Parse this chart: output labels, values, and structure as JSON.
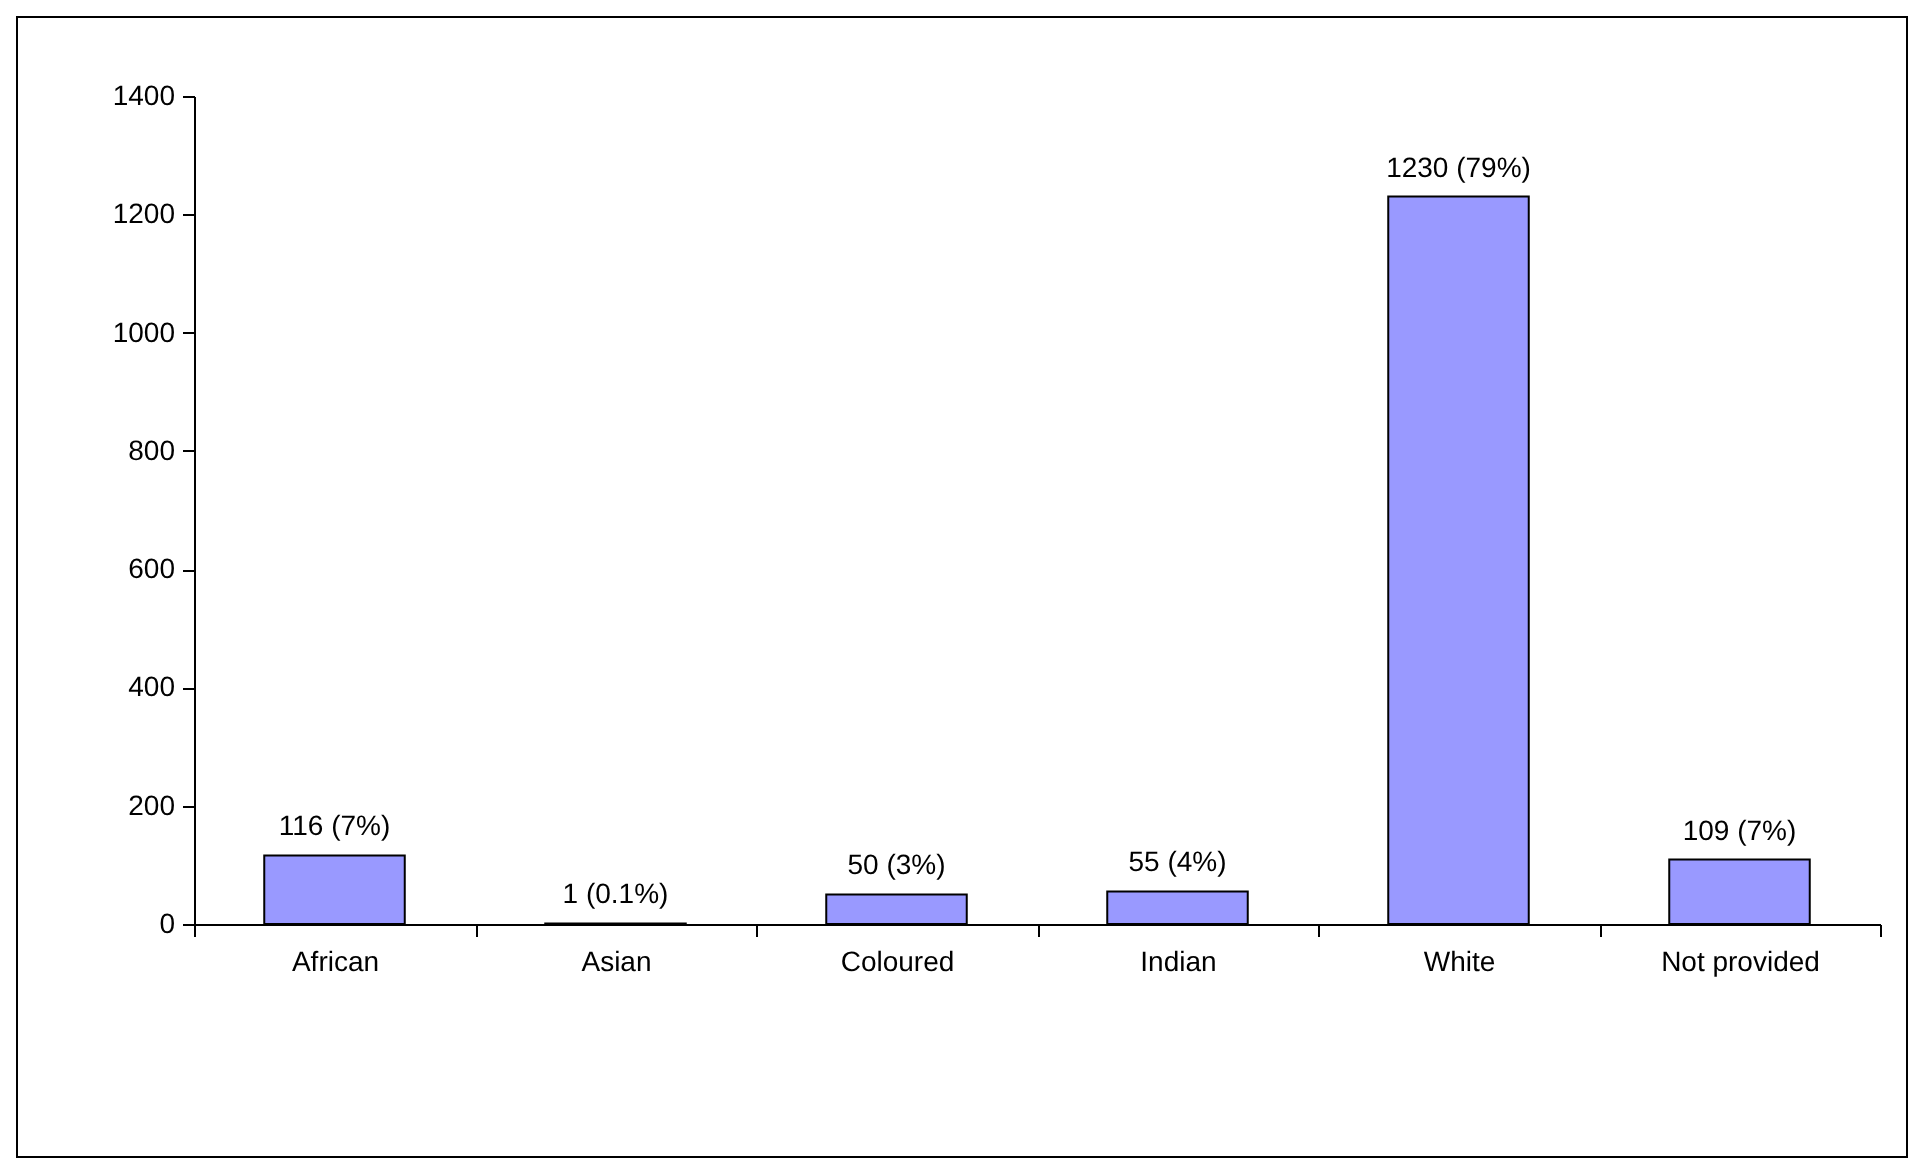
{
  "chart_data": {
    "type": "bar",
    "categories": [
      "African",
      "Asian",
      "Coloured",
      "Indian",
      "White",
      "Not provided"
    ],
    "values": [
      116,
      1,
      50,
      55,
      1230,
      109
    ],
    "value_labels": [
      "116 (7%)",
      "1 (0.1%)",
      "50 (3%)",
      "55 (4%)",
      "1230 (79%)",
      "109 (7%)"
    ],
    "color": "#9999ff",
    "ylim": [
      0,
      1400
    ],
    "yticks": [
      0,
      200,
      400,
      600,
      800,
      1000,
      1200,
      1400
    ],
    "grid": false
  }
}
